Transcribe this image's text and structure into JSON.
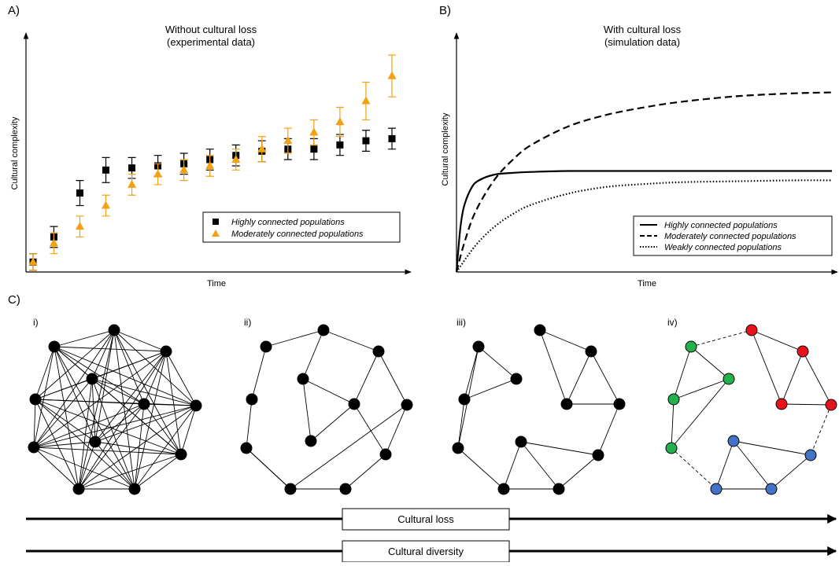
{
  "panels": {
    "a_label": "A)",
    "b_label": "B)",
    "c_label": "C)"
  },
  "chart_data": [
    {
      "type": "scatter",
      "title": "Without cultural loss",
      "subtitle": "(experimental data)",
      "xlabel": "Time",
      "ylabel": "Cultural complexity",
      "x_ticks_shown": false,
      "y_ticks_shown": false,
      "xlim": [
        1,
        70
      ],
      "ylim": [
        0,
        100
      ],
      "grid": false,
      "error_bars": true,
      "legend": "bottom-right",
      "series": [
        {
          "name": "Highly connected populations",
          "marker": "square",
          "color": "#000000",
          "x": [
            1,
            5,
            10,
            15,
            20,
            25,
            30,
            35,
            40,
            45,
            50,
            55,
            60,
            65,
            70
          ],
          "y": [
            1,
            13,
            34,
            45,
            46,
            47,
            48,
            50,
            52,
            54,
            55,
            55,
            57,
            59,
            60
          ],
          "error": [
            4,
            5,
            6,
            6,
            5,
            5,
            5,
            5,
            5,
            5,
            5,
            5,
            5,
            5,
            5
          ]
        },
        {
          "name": "Moderately connected populations",
          "marker": "triangle",
          "color": "#F5A011",
          "x": [
            1,
            5,
            10,
            15,
            20,
            25,
            30,
            35,
            40,
            45,
            50,
            55,
            60,
            65,
            70
          ],
          "y": [
            1,
            10,
            18,
            28,
            38,
            43,
            45,
            47,
            50,
            55,
            59,
            63,
            68,
            78,
            90
          ],
          "error": [
            4,
            5,
            5,
            5,
            5,
            5,
            5,
            5,
            5,
            6,
            6,
            6,
            7,
            9,
            10
          ]
        }
      ]
    },
    {
      "type": "line",
      "title": "With cultural loss",
      "subtitle": "(simulation data)",
      "xlabel": "Time",
      "ylabel": "Cultural complexity",
      "x_ticks_shown": false,
      "y_ticks_shown": false,
      "xlim": [
        0,
        100
      ],
      "ylim": [
        0,
        100
      ],
      "grid": false,
      "legend": "bottom-right",
      "series": [
        {
          "name": "Highly connected populations",
          "style": "solid",
          "x": [
            0,
            1,
            2,
            4,
            6,
            10,
            15,
            20,
            30,
            50,
            75,
            100
          ],
          "y": [
            0,
            23,
            35,
            45,
            49,
            52,
            53,
            53.5,
            54,
            54,
            54,
            54
          ]
        },
        {
          "name": "Moderately connected populations",
          "style": "dashed",
          "x": [
            0,
            2,
            5,
            10,
            15,
            20,
            30,
            40,
            50,
            60,
            75,
            90,
            100
          ],
          "y": [
            0,
            15,
            32,
            49,
            60,
            68,
            78,
            84,
            88,
            91,
            94,
            95.5,
            96
          ]
        },
        {
          "name": "Weakly connected populations",
          "style": "dotted",
          "x": [
            0,
            5,
            10,
            15,
            20,
            30,
            40,
            50,
            60,
            75,
            90,
            100
          ],
          "y": [
            0,
            14,
            24,
            31,
            36,
            42,
            45.5,
            47,
            48,
            48.5,
            49,
            49
          ]
        }
      ]
    }
  ],
  "networks": {
    "labels": [
      "i)",
      "ii)",
      "iii)",
      "iv)"
    ],
    "group_colors": {
      "green": "#22B14C",
      "red": "#E8121A",
      "blue": "#4472C4"
    },
    "dashed_links_between_groups": true
  },
  "arrows": {
    "loss_label": "Cultural loss",
    "diversity_label": "Cultural diversity"
  }
}
